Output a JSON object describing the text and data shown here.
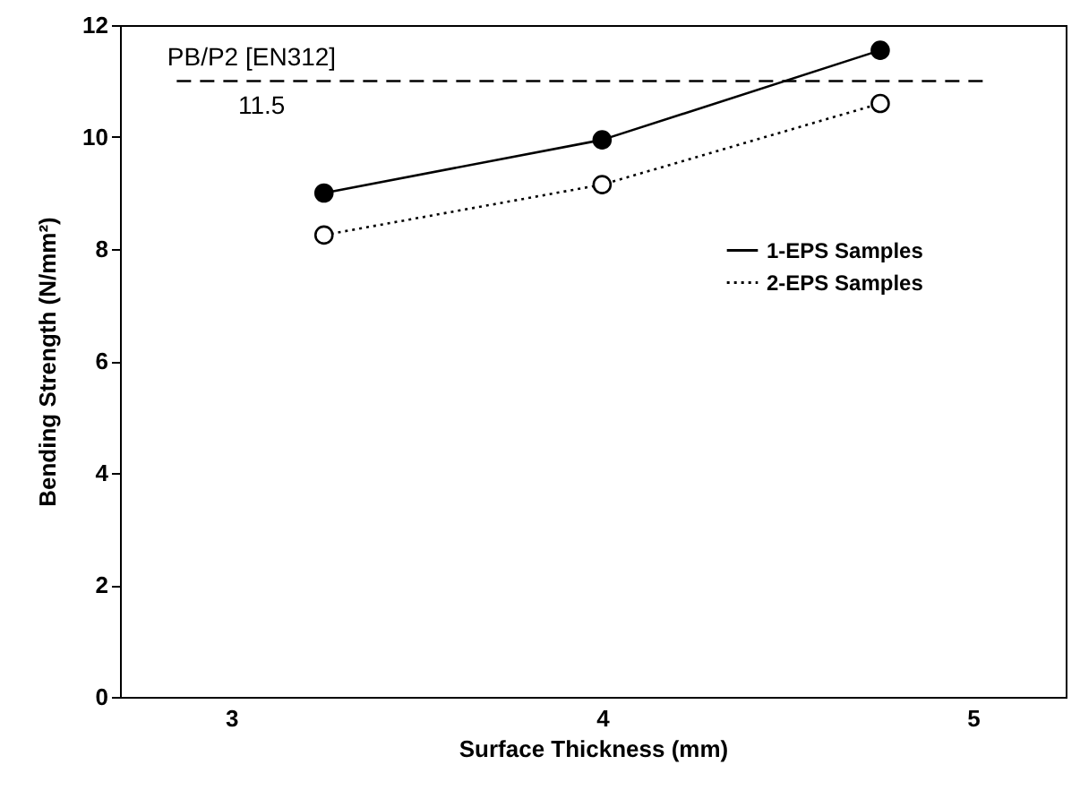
{
  "chart_data": {
    "type": "line",
    "xlabel": "Surface Thickness (mm)",
    "ylabel": "Bending Strength (N/mm²)",
    "x": [
      3.25,
      4,
      4.75
    ],
    "series": [
      {
        "name": "1-EPS Samples",
        "color": "#000000",
        "values": [
          9.0,
          9.95,
          11.55
        ],
        "line_style": "solid"
      },
      {
        "name": "2-EPS Samples",
        "color": "#000000",
        "values": [
          8.25,
          9.15,
          10.6
        ],
        "line_style": "dotted"
      }
    ],
    "xlim": [
      2.7,
      5.25
    ],
    "xticks": [
      3,
      4,
      5
    ],
    "ylim": [
      0,
      12
    ],
    "yticks": [
      0,
      2,
      4,
      6,
      8,
      10,
      12
    ],
    "ref_lines": [
      {
        "axis": "y",
        "value": 11,
        "label": "PB/P2 [EN312]",
        "line_style": "dashed",
        "color": "#000000"
      }
    ],
    "annotations": [
      "11.5"
    ],
    "marker": "circle",
    "grid": false,
    "legend": "right"
  }
}
